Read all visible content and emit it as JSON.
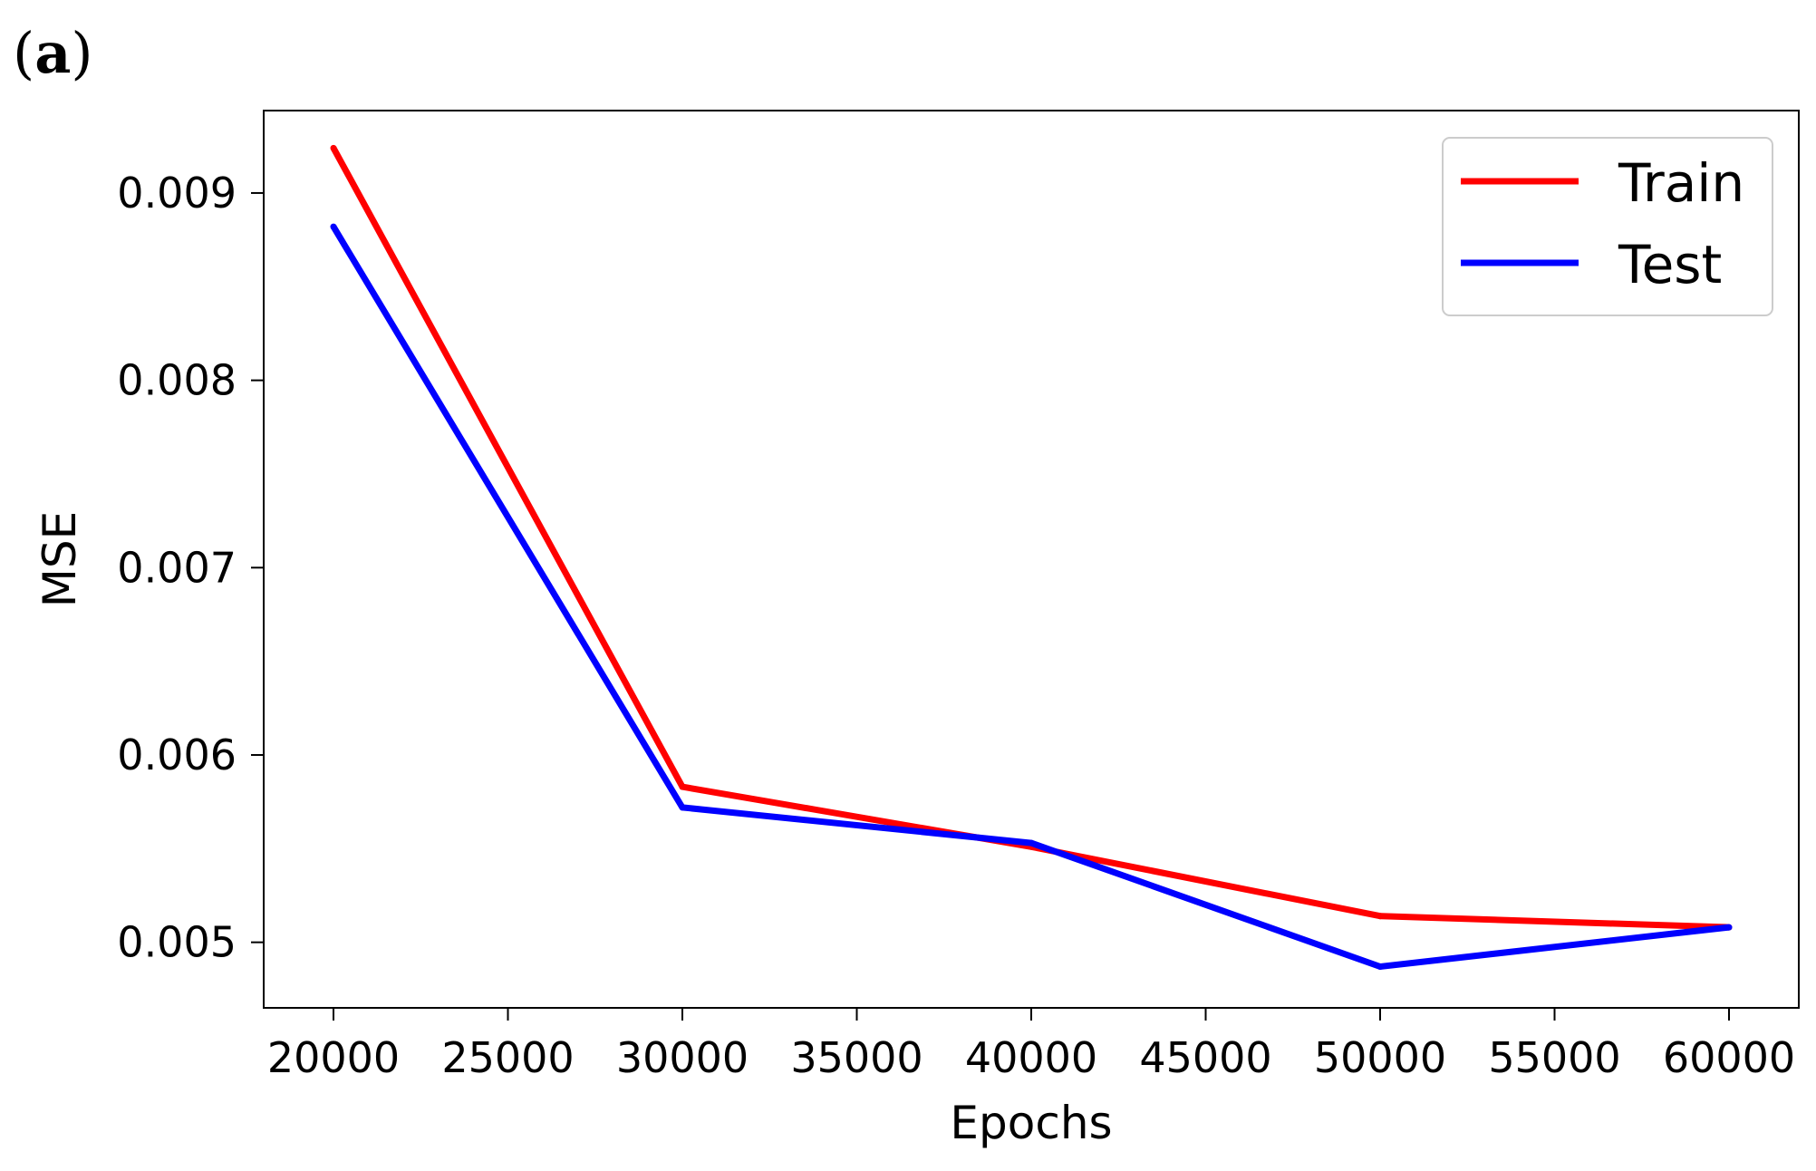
{
  "panel_label": {
    "open": "(",
    "letter": "a",
    "close": ")"
  },
  "chart_data": {
    "type": "line",
    "xlabel": "Epochs",
    "ylabel": "MSE",
    "xlim": [
      18000,
      62000
    ],
    "ylim": [
      0.00465,
      0.00944
    ],
    "xticks": [
      20000,
      25000,
      30000,
      35000,
      40000,
      45000,
      50000,
      55000,
      60000
    ],
    "xtick_labels": [
      "20000",
      "25000",
      "30000",
      "35000",
      "40000",
      "45000",
      "50000",
      "55000",
      "60000"
    ],
    "yticks": [
      0.005,
      0.006,
      0.007,
      0.008,
      0.009
    ],
    "ytick_labels": [
      "0.005",
      "0.006",
      "0.007",
      "0.008",
      "0.009"
    ],
    "grid": false,
    "legend_position": "top-right",
    "series": [
      {
        "name": "Train",
        "color": "#ff0000",
        "x": [
          20000,
          30000,
          40000,
          50000,
          60000
        ],
        "y": [
          0.00924,
          0.00583,
          0.00551,
          0.00514,
          0.00508
        ]
      },
      {
        "name": "Test",
        "color": "#0000ff",
        "x": [
          20000,
          30000,
          40000,
          50000,
          60000
        ],
        "y": [
          0.00882,
          0.00572,
          0.00553,
          0.00487,
          0.00508
        ]
      }
    ]
  }
}
